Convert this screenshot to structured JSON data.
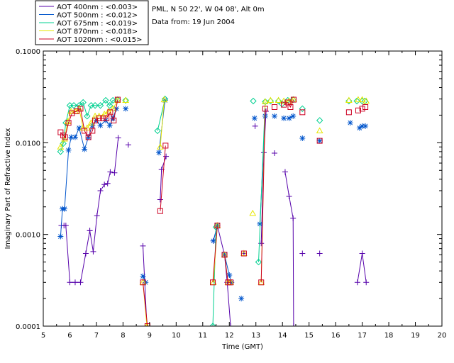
{
  "chart_data": {
    "type": "scatter",
    "title": "",
    "xlabel": "Time (GMT)",
    "ylabel": "Imaginary Part of Refractive Index",
    "xlim": [
      5,
      20
    ],
    "ylim": [
      0.0001,
      0.1
    ],
    "yscale": "log",
    "x_ticks": [
      "5",
      "6",
      "7",
      "8",
      "9",
      "10",
      "11",
      "12",
      "13",
      "14",
      "15",
      "16",
      "17",
      "18",
      "19",
      "20"
    ],
    "y_ticks": [
      "0.0001",
      "0.0010",
      "0.0100",
      "0.1000"
    ],
    "info_lines": [
      "PML, N 50 22', W 04 08', Alt 0m",
      "Data from: 19 Jun 2004"
    ],
    "legend": [
      {
        "text": "AOT  400nm : <0.003>",
        "color": "#5500aa",
        "marker": "plus"
      },
      {
        "text": "AOT  500nm : <0.012>",
        "color": "#0055cc",
        "marker": "asterisk"
      },
      {
        "text": "AOT  675nm : <0.019>",
        "color": "#00d090",
        "marker": "diamond"
      },
      {
        "text": "AOT  870nm : <0.018>",
        "color": "#e6e600",
        "marker": "triangle"
      },
      {
        "text": "AOT 1020nm : <0.015>",
        "color": "#cc0022",
        "marker": "square"
      }
    ],
    "series": [
      {
        "name": "AOT 400nm",
        "segments": [
          [
            [
              5.68,
              0.00125
            ],
            [
              5.78,
              0.00125
            ],
            [
              5.85,
              0.00125
            ],
            [
              6.0,
              0.0003
            ],
            [
              6.2,
              0.0003
            ],
            [
              6.4,
              0.0003
            ],
            [
              6.6,
              0.00062
            ],
            [
              6.75,
              0.0011
            ],
            [
              6.88,
              0.00065
            ],
            [
              7.02,
              0.0016
            ],
            [
              7.15,
              0.003
            ],
            [
              7.3,
              0.0035
            ],
            [
              7.42,
              0.0036
            ],
            [
              7.52,
              0.0048
            ],
            [
              7.68,
              0.0047
            ],
            [
              7.82,
              0.0113
            ]
          ],
          [
            [
              8.75,
              0.00075
            ],
            [
              8.9,
              0.0001
            ]
          ],
          [
            [
              9.4,
              0.0024
            ],
            [
              9.45,
              0.0051
            ],
            [
              9.62,
              0.0071
            ]
          ],
          [
            [
              11.4,
              0.00085
            ],
            [
              11.55,
              0.00125
            ],
            [
              11.82,
              0.0006
            ],
            [
              11.92,
              0.0003
            ],
            [
              12.05,
              0.0001
            ]
          ],
          [
            [
              13.2,
              0.0008
            ],
            [
              13.3,
              0.0078
            ],
            [
              13.38,
              0.022
            ]
          ],
          [
            [
              14.1,
              0.0048
            ],
            [
              14.25,
              0.0026
            ],
            [
              14.4,
              0.0015
            ],
            [
              14.42,
              0.0001
            ]
          ],
          [
            [
              16.82,
              0.0003
            ],
            [
              17.0,
              0.00062
            ],
            [
              17.15,
              0.0003
            ]
          ]
        ],
        "points": [
          [
            6.75,
            0.0011
          ],
          [
            8.2,
            0.0095
          ],
          [
            12.55,
            0.00062
          ],
          [
            12.97,
            0.0152
          ],
          [
            13.7,
            0.0077
          ],
          [
            14.75,
            0.00062
          ],
          [
            15.4,
            0.00062
          ]
        ]
      },
      {
        "name": "AOT 500nm",
        "segments": [
          [
            [
              5.65,
              0.00095
            ],
            [
              5.72,
              0.0019
            ],
            [
              5.8,
              0.0019
            ],
            [
              5.95,
              0.0083
            ],
            [
              6.05,
              0.0115
            ],
            [
              6.2,
              0.0115
            ],
            [
              6.35,
              0.0145
            ],
            [
              6.55,
              0.0085
            ],
            [
              6.7,
              0.0115
            ],
            [
              6.85,
              0.0155
            ],
            [
              7.0,
              0.0175
            ],
            [
              7.15,
              0.0155
            ],
            [
              7.35,
              0.0175
            ],
            [
              7.5,
              0.0155
            ],
            [
              7.62,
              0.0185
            ],
            [
              7.75,
              0.0235
            ]
          ],
          [
            [
              8.75,
              0.00035
            ],
            [
              8.85,
              0.0003
            ]
          ],
          [
            [
              9.35,
              0.0078
            ],
            [
              9.58,
              0.029
            ]
          ],
          [
            [
              11.4,
              0.00085
            ],
            [
              11.55,
              0.00125
            ]
          ],
          [
            [
              11.82,
              0.0006
            ],
            [
              12.0,
              0.00036
            ],
            [
              12.08,
              0.0003
            ]
          ],
          [
            [
              13.15,
              0.0013
            ],
            [
              13.35,
              0.0195
            ]
          ],
          [
            [
              14.05,
              0.0185
            ],
            [
              14.25,
              0.0185
            ],
            [
              14.4,
              0.0195
            ]
          ]
        ],
        "points": [
          [
            8.1,
            0.0235
          ],
          [
            12.45,
            0.0002
          ],
          [
            12.95,
            0.0185
          ],
          [
            13.7,
            0.0195
          ],
          [
            14.75,
            0.0112
          ],
          [
            15.4,
            0.0105
          ],
          [
            16.55,
            0.0165
          ],
          [
            16.9,
            0.0145
          ],
          [
            17.0,
            0.0152
          ],
          [
            17.12,
            0.0152
          ]
        ]
      },
      {
        "name": "AOT 675nm",
        "segments": [
          [
            [
              5.65,
              0.008
            ],
            [
              5.75,
              0.0098
            ],
            [
              5.85,
              0.0165
            ],
            [
              6.0,
              0.0255
            ],
            [
              6.15,
              0.0255
            ],
            [
              6.35,
              0.0255
            ],
            [
              6.5,
              0.0275
            ],
            [
              6.65,
              0.0195
            ],
            [
              6.8,
              0.0255
            ],
            [
              6.95,
              0.0255
            ],
            [
              7.15,
              0.0255
            ],
            [
              7.35,
              0.029
            ],
            [
              7.5,
              0.0255
            ],
            [
              7.62,
              0.029
            ],
            [
              7.8,
              0.0295
            ]
          ],
          [
            [
              9.3,
              0.0135
            ],
            [
              9.58,
              0.03
            ]
          ],
          [
            [
              11.38,
              0.0001
            ],
            [
              11.5,
              0.0012
            ]
          ],
          [
            [
              13.1,
              0.0005
            ],
            [
              13.35,
              0.028
            ]
          ],
          [
            [
              13.98,
              0.0265
            ],
            [
              14.2,
              0.029
            ],
            [
              14.4,
              0.0295
            ]
          ]
        ],
        "points": [
          [
            8.1,
            0.029
          ],
          [
            12.9,
            0.0285
          ],
          [
            13.55,
            0.0285
          ],
          [
            13.85,
            0.0285
          ],
          [
            14.75,
            0.0235
          ],
          [
            15.4,
            0.0175
          ],
          [
            16.5,
            0.0285
          ],
          [
            16.8,
            0.0285
          ],
          [
            17.0,
            0.0285
          ],
          [
            17.1,
            0.0285
          ]
        ]
      },
      {
        "name": "AOT 870nm",
        "segments": [
          [
            [
              5.65,
              0.009
            ],
            [
              5.8,
              0.011
            ],
            [
              5.92,
              0.017
            ],
            [
              6.05,
              0.022
            ],
            [
              6.2,
              0.022
            ],
            [
              6.35,
              0.0235
            ],
            [
              6.5,
              0.0145
            ],
            [
              6.65,
              0.0145
            ],
            [
              6.8,
              0.0165
            ],
            [
              6.95,
              0.0195
            ],
            [
              7.1,
              0.0195
            ],
            [
              7.3,
              0.0205
            ],
            [
              7.45,
              0.022
            ],
            [
              7.62,
              0.0235
            ],
            [
              7.8,
              0.029
            ]
          ],
          [
            [
              8.75,
              0.0003
            ],
            [
              8.9,
              0.0001
            ]
          ],
          [
            [
              9.4,
              0.009
            ],
            [
              9.55,
              0.0295
            ]
          ],
          [
            [
              11.4,
              0.0003
            ],
            [
              11.55,
              0.00125
            ]
          ],
          [
            [
              11.82,
              0.0006
            ],
            [
              11.95,
              0.0003
            ],
            [
              12.05,
              0.0003
            ]
          ],
          [
            [
              13.2,
              0.0003
            ],
            [
              13.35,
              0.028
            ]
          ],
          [
            [
              14.05,
              0.0285
            ],
            [
              14.25,
              0.0285
            ],
            [
              14.42,
              0.0295
            ]
          ]
        ],
        "points": [
          [
            8.1,
            0.029
          ],
          [
            12.55,
            0.00062
          ],
          [
            12.88,
            0.0017
          ],
          [
            13.55,
            0.029
          ],
          [
            13.85,
            0.029
          ],
          [
            15.4,
            0.0135
          ],
          [
            16.5,
            0.029
          ],
          [
            16.85,
            0.0295
          ],
          [
            17.0,
            0.0295
          ],
          [
            17.15,
            0.0285
          ]
        ]
      },
      {
        "name": "AOT 1020nm",
        "segments": [
          [
            [
              5.65,
              0.013
            ],
            [
              5.75,
              0.012
            ],
            [
              5.82,
              0.0115
            ],
            [
              5.95,
              0.0165
            ],
            [
              6.08,
              0.021
            ],
            [
              6.25,
              0.022
            ],
            [
              6.4,
              0.0235
            ],
            [
              6.55,
              0.0135
            ],
            [
              6.7,
              0.0115
            ],
            [
              6.85,
              0.0135
            ],
            [
              6.95,
              0.0175
            ],
            [
              7.1,
              0.0185
            ],
            [
              7.25,
              0.0185
            ],
            [
              7.38,
              0.0185
            ],
            [
              7.52,
              0.0215
            ],
            [
              7.65,
              0.0175
            ],
            [
              7.8,
              0.0295
            ]
          ],
          [
            [
              8.75,
              0.0003
            ],
            [
              8.92,
              0.0001
            ]
          ],
          [
            [
              9.4,
              0.0018
            ],
            [
              9.6,
              0.0093
            ]
          ],
          [
            [
              11.38,
              0.0003
            ],
            [
              11.55,
              0.00125
            ]
          ],
          [
            [
              11.82,
              0.0006
            ],
            [
              11.95,
              0.0003
            ],
            [
              12.05,
              0.0003
            ]
          ],
          [
            [
              13.2,
              0.0003
            ],
            [
              13.35,
              0.0235
            ]
          ],
          [
            [
              14.05,
              0.026
            ],
            [
              14.2,
              0.0275
            ],
            [
              14.3,
              0.0245
            ],
            [
              14.42,
              0.0295
            ]
          ]
        ],
        "points": [
          [
            12.55,
            0.00062
          ],
          [
            13.7,
            0.0245
          ],
          [
            14.75,
            0.0215
          ],
          [
            15.4,
            0.0105
          ],
          [
            16.5,
            0.0215
          ],
          [
            16.85,
            0.0225
          ],
          [
            17.0,
            0.0235
          ],
          [
            17.12,
            0.0245
          ]
        ]
      }
    ]
  }
}
